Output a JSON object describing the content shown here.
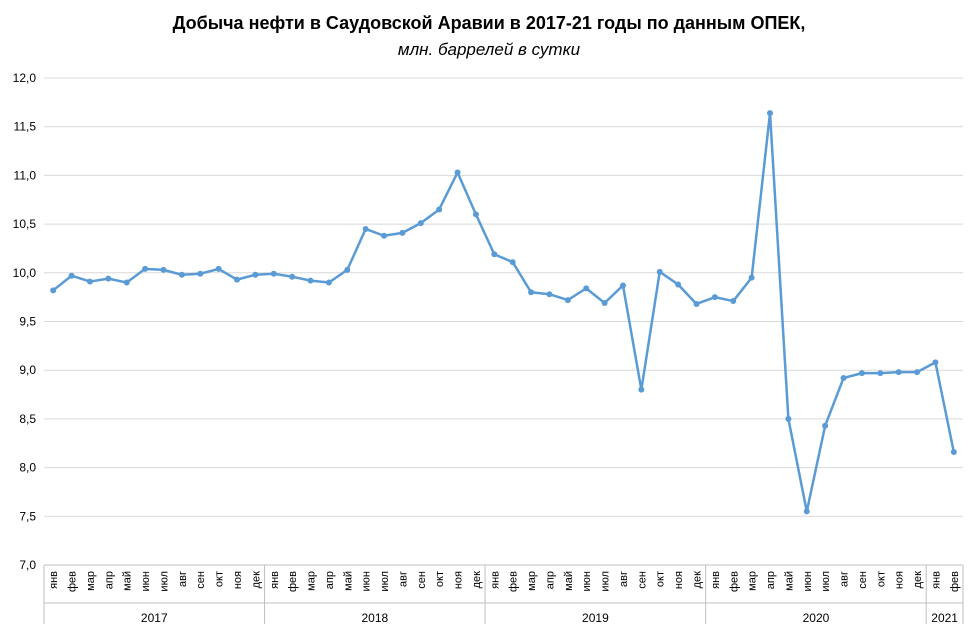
{
  "chart_data": {
    "type": "line",
    "title": "Добыча нефти в Саудовской Аравии в 2017-21 годы по данным ОПЕК,",
    "subtitle": "млн. баррелей в сутки",
    "ylim": [
      7.0,
      12.0
    ],
    "yticks": [
      "7,0",
      "7,5",
      "8,0",
      "8,5",
      "9,0",
      "9,5",
      "10,0",
      "10,5",
      "11,0",
      "11,5",
      "12,0"
    ],
    "grid": true,
    "line_color": "#5B9BD5",
    "years": [
      {
        "label": "2017",
        "months": 12
      },
      {
        "label": "2018",
        "months": 12
      },
      {
        "label": "2019",
        "months": 12
      },
      {
        "label": "2020",
        "months": 12
      },
      {
        "label": "2021",
        "months": 2
      }
    ],
    "categories": [
      "янв",
      "фев",
      "мар",
      "апр",
      "май",
      "июн",
      "июл",
      "авг",
      "сен",
      "окт",
      "ноя",
      "дек",
      "янв",
      "фев",
      "мар",
      "апр",
      "май",
      "июн",
      "июл",
      "авг",
      "сен",
      "окт",
      "ноя",
      "дек",
      "янв",
      "фев",
      "мар",
      "апр",
      "май",
      "июн",
      "июл",
      "авг",
      "сен",
      "окт",
      "ноя",
      "дек",
      "янв",
      "фев",
      "мар",
      "апр",
      "май",
      "июн",
      "июл",
      "авг",
      "сен",
      "окт",
      "ноя",
      "дек",
      "янв",
      "фев"
    ],
    "values": [
      9.82,
      9.97,
      9.91,
      9.94,
      9.9,
      10.04,
      10.03,
      9.98,
      9.99,
      10.04,
      9.93,
      9.98,
      9.99,
      9.96,
      9.92,
      9.9,
      10.03,
      10.45,
      10.38,
      10.41,
      10.51,
      10.65,
      11.03,
      10.6,
      10.19,
      10.11,
      9.8,
      9.78,
      9.72,
      9.84,
      9.69,
      9.87,
      8.8,
      10.01,
      9.88,
      9.68,
      9.75,
      9.71,
      9.95,
      11.64,
      8.5,
      7.55,
      8.43,
      8.92,
      8.97,
      8.97,
      8.98,
      8.98,
      9.08,
      8.16
    ]
  }
}
